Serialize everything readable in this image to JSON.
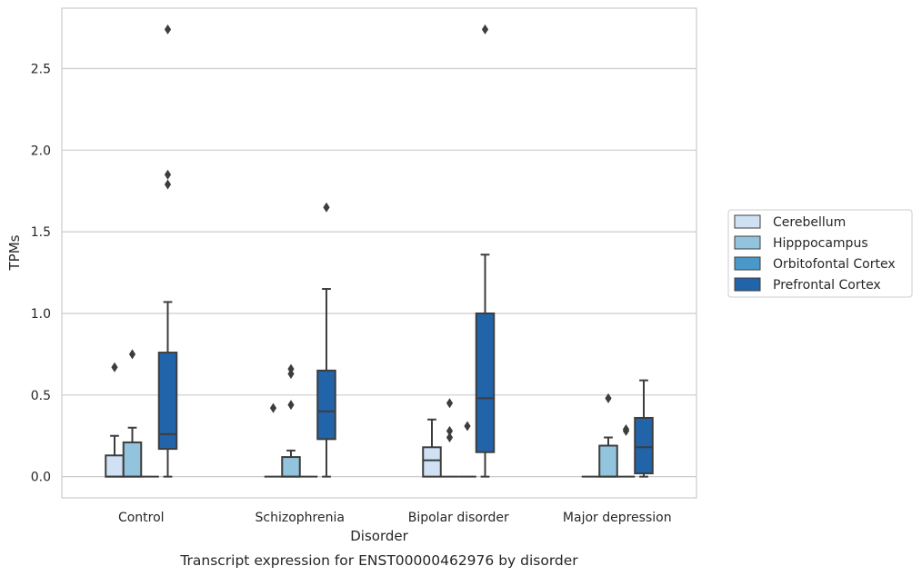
{
  "chart_data": {
    "type": "box",
    "caption": "Transcript expression for ENST00000462976 by disorder",
    "xlabel": "Disorder",
    "ylabel": "TPMs",
    "ylim": [
      -0.13,
      2.87
    ],
    "yticks": [
      "0.0",
      "0.5",
      "1.0",
      "1.5",
      "2.0",
      "2.5"
    ],
    "ytick_values": [
      0.0,
      0.5,
      1.0,
      1.5,
      2.0,
      2.5
    ],
    "grid": "horizontal",
    "legend_position": "right",
    "categories": [
      "Control",
      "Schizophrenia",
      "Bipolar disorder",
      "Major depression"
    ],
    "series": [
      {
        "name": "Cerebellum",
        "color": "#cfe1f2",
        "boxes": [
          {
            "min": 0.0,
            "q1": 0.0,
            "median": 0.0,
            "q3": 0.13,
            "max": 0.25,
            "outliers": [
              0.67
            ]
          },
          {
            "min": 0.0,
            "q1": 0.0,
            "median": 0.0,
            "q3": 0.0,
            "max": 0.0,
            "outliers": [
              0.42
            ]
          },
          {
            "min": 0.0,
            "q1": 0.0,
            "median": 0.1,
            "q3": 0.18,
            "max": 0.35,
            "outliers": []
          },
          {
            "min": 0.0,
            "q1": 0.0,
            "median": 0.0,
            "q3": 0.0,
            "max": 0.0,
            "outliers": []
          }
        ]
      },
      {
        "name": "Hipppocampus",
        "color": "#93c4de",
        "boxes": [
          {
            "min": 0.0,
            "q1": 0.0,
            "median": 0.0,
            "q3": 0.21,
            "max": 0.3,
            "outliers": [
              0.75
            ]
          },
          {
            "min": 0.0,
            "q1": 0.0,
            "median": 0.0,
            "q3": 0.12,
            "max": 0.16,
            "outliers": [
              0.44,
              0.63,
              0.66
            ]
          },
          {
            "min": 0.0,
            "q1": 0.0,
            "median": 0.0,
            "q3": 0.0,
            "max": 0.0,
            "outliers": [
              0.24,
              0.28,
              0.45
            ]
          },
          {
            "min": 0.0,
            "q1": 0.0,
            "median": 0.0,
            "q3": 0.19,
            "max": 0.24,
            "outliers": [
              0.48
            ]
          }
        ]
      },
      {
        "name": "Orbitofontal Cortex",
        "color": "#4a98c9",
        "boxes": [
          {
            "min": 0.0,
            "q1": 0.0,
            "median": 0.0,
            "q3": 0.0,
            "max": 0.0,
            "outliers": []
          },
          {
            "min": 0.0,
            "q1": 0.0,
            "median": 0.0,
            "q3": 0.0,
            "max": 0.0,
            "outliers": []
          },
          {
            "min": 0.0,
            "q1": 0.0,
            "median": 0.0,
            "q3": 0.0,
            "max": 0.0,
            "outliers": [
              0.31
            ]
          },
          {
            "min": 0.0,
            "q1": 0.0,
            "median": 0.0,
            "q3": 0.0,
            "max": 0.0,
            "outliers": [
              0.28,
              0.29
            ]
          }
        ]
      },
      {
        "name": "Prefrontal Cortex",
        "color": "#2264a9",
        "boxes": [
          {
            "min": 0.0,
            "q1": 0.17,
            "median": 0.26,
            "q3": 0.76,
            "max": 1.07,
            "outliers": [
              1.79,
              1.85,
              2.74
            ]
          },
          {
            "min": 0.0,
            "q1": 0.23,
            "median": 0.4,
            "q3": 0.65,
            "max": 1.15,
            "outliers": [
              1.65
            ]
          },
          {
            "min": 0.0,
            "q1": 0.15,
            "median": 0.48,
            "q3": 1.0,
            "max": 1.36,
            "outliers": [
              2.74
            ]
          },
          {
            "min": 0.0,
            "q1": 0.02,
            "median": 0.18,
            "q3": 0.36,
            "max": 0.59,
            "outliers": []
          }
        ]
      }
    ]
  }
}
